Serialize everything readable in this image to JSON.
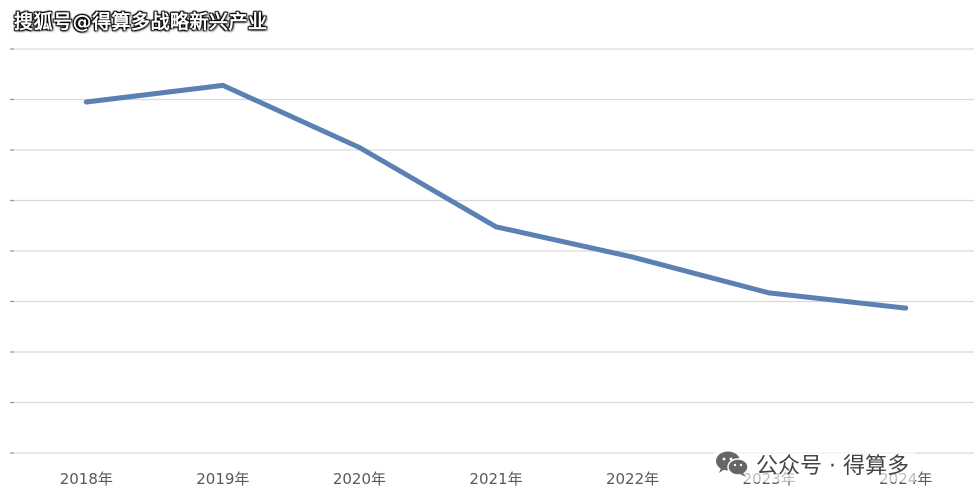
{
  "header": {
    "watermark": "搜狐号@得算多战略新兴产业"
  },
  "footer": {
    "watermark": "公众号 · 得算多",
    "icon": "wechat-icon"
  },
  "colors": {
    "line": "#5b80b2",
    "grid": "#d9d9d9",
    "text": "#595959"
  },
  "chart_data": {
    "type": "line",
    "categories": [
      "2018年",
      "2019年",
      "2020年",
      "2021年",
      "2022年",
      "2023年",
      "2024年"
    ],
    "series": [
      {
        "values": [
          6.95,
          7.28,
          6.05,
          4.48,
          3.88,
          3.17,
          2.87
        ]
      }
    ],
    "ylim": [
      0,
      8
    ],
    "grid": true,
    "title": "",
    "xlabel": "",
    "ylabel": ""
  }
}
